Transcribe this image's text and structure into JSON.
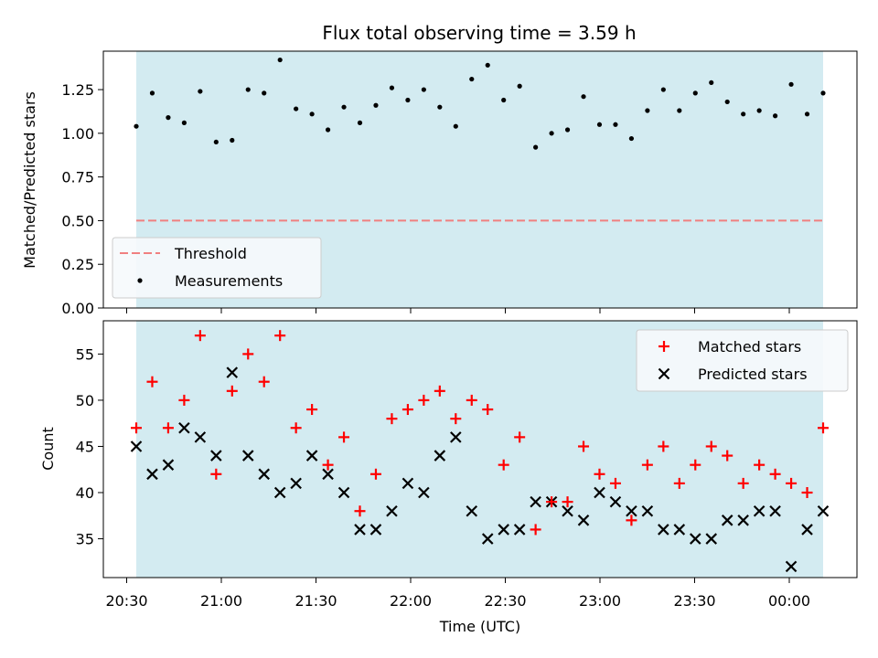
{
  "chart_data": {
    "title": "Flux total observing time = 3.59 h",
    "xlabel": "Time (UTC)",
    "x_ticks": [
      "20:30",
      "21:00",
      "21:30",
      "22:00",
      "22:30",
      "23:00",
      "23:30",
      "00:00"
    ],
    "colors": {
      "span": "#d3ebf1",
      "threshold": "#f08080",
      "matched": "#ff0000",
      "predicted": "#000000",
      "measure": "#000000"
    },
    "panels": [
      {
        "type": "scatter",
        "ylabel": "Matched/Predicted stars",
        "ylim": [
          0,
          1.47
        ],
        "y_ticks": [
          "0.00",
          "0.25",
          "0.50",
          "0.75",
          "1.00",
          "1.25"
        ],
        "threshold": 0.5,
        "legend_position": "lower-left",
        "legend": [
          "Threshold",
          "Measurements"
        ],
        "points": [
          1.04,
          1.23,
          1.09,
          1.06,
          1.24,
          0.95,
          0.96,
          1.25,
          1.23,
          1.42,
          1.14,
          1.11,
          1.02,
          1.15,
          1.06,
          1.16,
          1.26,
          1.19,
          1.25,
          1.15,
          1.04,
          1.31,
          1.39,
          1.19,
          1.27,
          0.92,
          1.0,
          1.02,
          1.21,
          1.05,
          1.05,
          0.97,
          1.13,
          1.25,
          1.13,
          1.23,
          1.29,
          1.18,
          1.11,
          1.13,
          1.1,
          1.28,
          1.11,
          1.23
        ]
      },
      {
        "type": "scatter",
        "ylabel": "Count",
        "ylim": [
          30.8,
          58.6
        ],
        "y_ticks": [
          "35",
          "40",
          "45",
          "50",
          "55"
        ],
        "legend_position": "upper-right",
        "legend": [
          "Matched stars",
          "Predicted stars"
        ],
        "matched": [
          47,
          52,
          47,
          50,
          57,
          42,
          51,
          55,
          52,
          57,
          47,
          49,
          43,
          46,
          38,
          42,
          48,
          49,
          50,
          51,
          48,
          50,
          49,
          43,
          46,
          36,
          39,
          39,
          45,
          42,
          41,
          37,
          43,
          45,
          41,
          43,
          45,
          44,
          41,
          43,
          42,
          41,
          40,
          47
        ],
        "predicted": [
          45,
          42,
          43,
          47,
          46,
          44,
          53,
          44,
          42,
          40,
          41,
          44,
          42,
          40,
          36,
          36,
          38,
          41,
          40,
          44,
          46,
          38,
          35,
          36,
          36,
          39,
          39,
          38,
          37,
          40,
          39,
          38,
          38,
          36,
          36,
          35,
          35,
          37,
          37,
          38,
          38,
          32,
          36,
          38
        ]
      }
    ]
  }
}
